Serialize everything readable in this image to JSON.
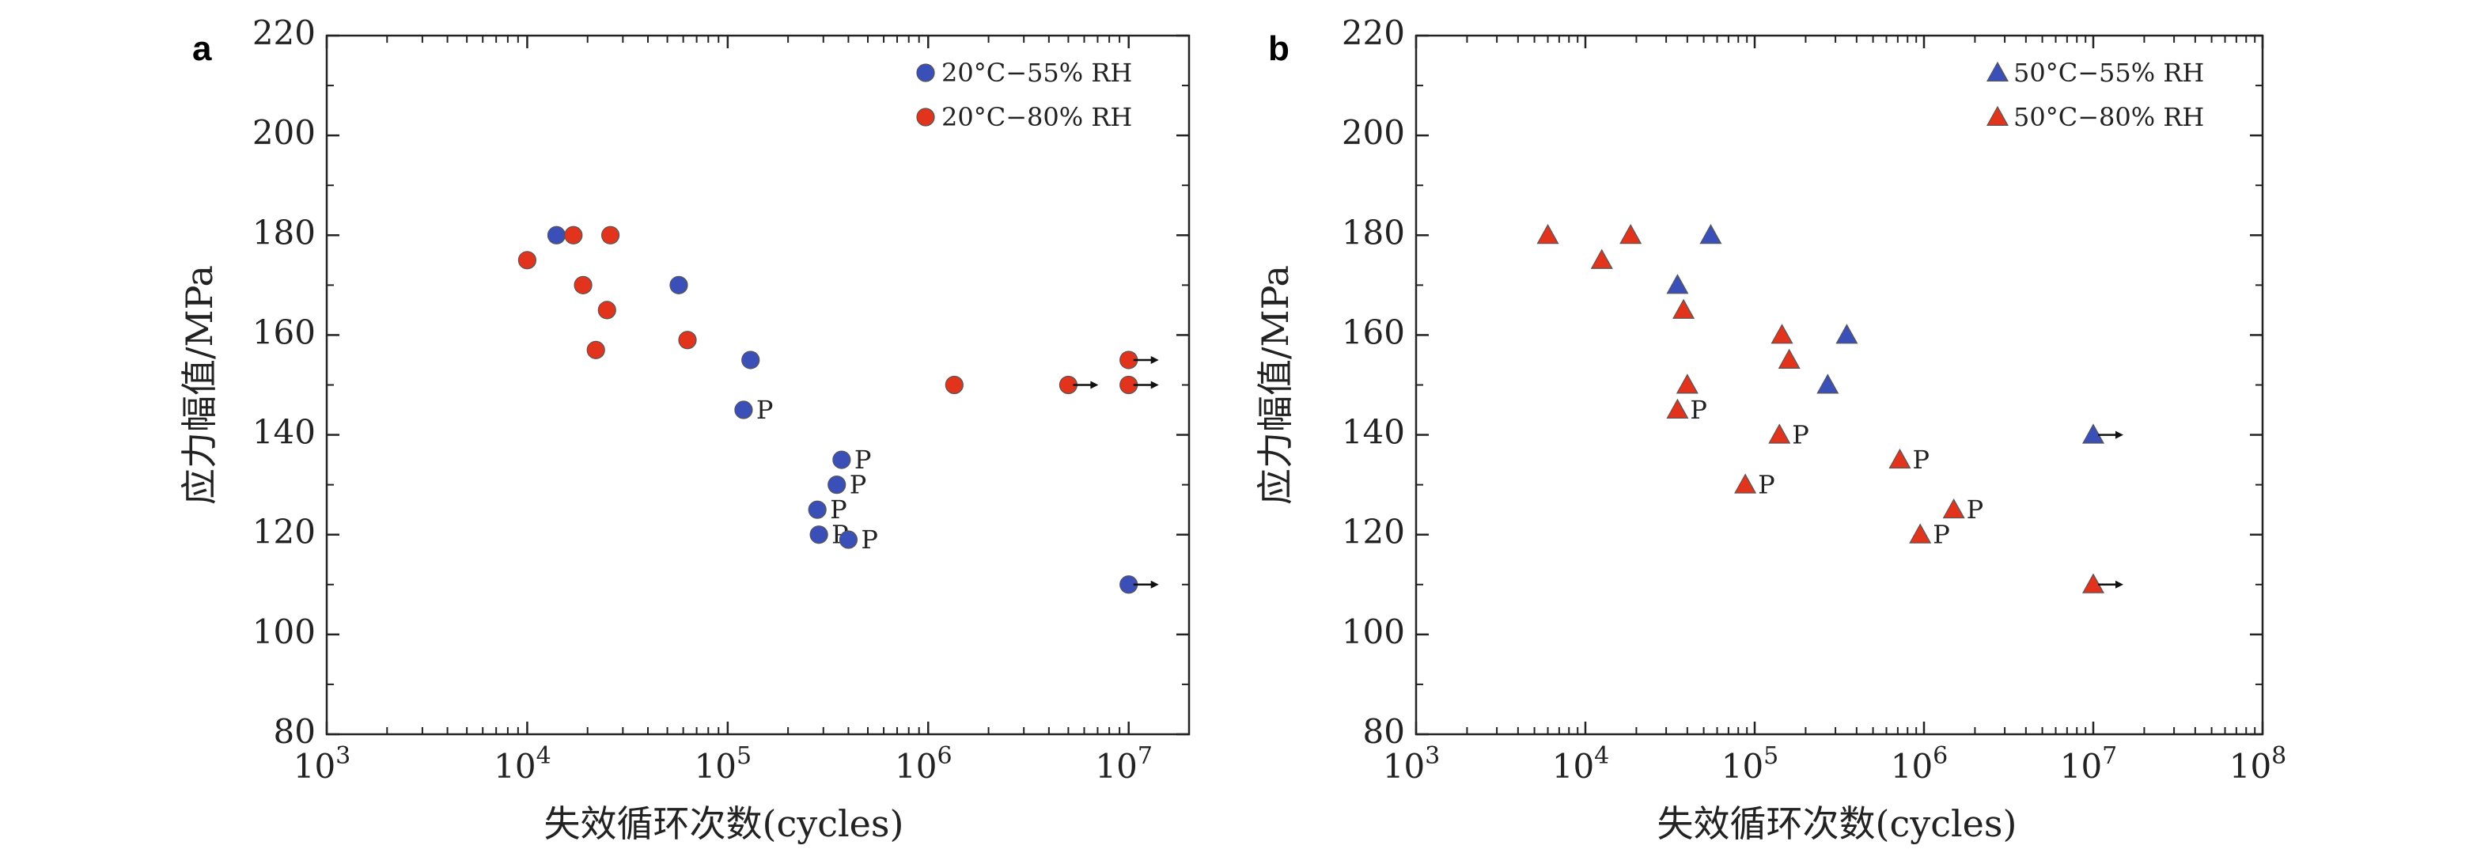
{
  "chart_data": [
    {
      "type": "scatter",
      "panel": "a",
      "xlabel": "失效循环次数(cycles)",
      "ylabel": "应力幅值/MPa",
      "xscale": "log",
      "xlim": [
        1000,
        20000000
      ],
      "ylim": [
        80,
        220
      ],
      "yticks": [
        80,
        100,
        120,
        140,
        160,
        180,
        200,
        220
      ],
      "xticks": [
        {
          "value": 1000,
          "base": "10",
          "exp": "3"
        },
        {
          "value": 10000,
          "base": "10",
          "exp": "4"
        },
        {
          "value": 100000,
          "base": "10",
          "exp": "5"
        },
        {
          "value": 1000000,
          "base": "10",
          "exp": "6"
        },
        {
          "value": 10000000,
          "base": "10",
          "exp": "7"
        }
      ],
      "grid": false,
      "legend_position": "top-right",
      "marker": "circle",
      "series": [
        {
          "name": "20°C−55% RH",
          "color": "#3b4fb8",
          "points": [
            {
              "x": 14000,
              "y": 180
            },
            {
              "x": 57000,
              "y": 170
            },
            {
              "x": 130000,
              "y": 155
            },
            {
              "x": 120000,
              "y": 145,
              "label": "P"
            },
            {
              "x": 370000,
              "y": 135,
              "label": "P"
            },
            {
              "x": 350000,
              "y": 130,
              "label": "P"
            },
            {
              "x": 280000,
              "y": 125,
              "label": "P"
            },
            {
              "x": 285000,
              "y": 120,
              "label": "P"
            },
            {
              "x": 400000,
              "y": 119,
              "label": "P"
            },
            {
              "x": 10000000,
              "y": 110,
              "runout": true
            }
          ]
        },
        {
          "name": "20°C−80% RH",
          "color": "#e2341d",
          "points": [
            {
              "x": 10000,
              "y": 175
            },
            {
              "x": 17000,
              "y": 180
            },
            {
              "x": 26000,
              "y": 180
            },
            {
              "x": 19000,
              "y": 170
            },
            {
              "x": 25000,
              "y": 165
            },
            {
              "x": 22000,
              "y": 157
            },
            {
              "x": 63000,
              "y": 159
            },
            {
              "x": 1350000,
              "y": 150
            },
            {
              "x": 5000000,
              "y": 150,
              "runout": true
            },
            {
              "x": 10000000,
              "y": 150,
              "runout": true
            },
            {
              "x": 10000000,
              "y": 155,
              "runout": true
            }
          ]
        }
      ]
    },
    {
      "type": "scatter",
      "panel": "b",
      "xlabel": "失效循环次数(cycles)",
      "ylabel": "应力幅值/MPa",
      "xscale": "log",
      "xlim": [
        1000,
        100000000
      ],
      "ylim": [
        80,
        220
      ],
      "yticks": [
        80,
        100,
        120,
        140,
        160,
        180,
        200,
        220
      ],
      "xticks": [
        {
          "value": 1000,
          "base": "10",
          "exp": "3"
        },
        {
          "value": 10000,
          "base": "10",
          "exp": "4"
        },
        {
          "value": 100000,
          "base": "10",
          "exp": "5"
        },
        {
          "value": 1000000,
          "base": "10",
          "exp": "6"
        },
        {
          "value": 10000000,
          "base": "10",
          "exp": "7"
        },
        {
          "value": 100000000,
          "base": "10",
          "exp": "8"
        }
      ],
      "grid": false,
      "legend_position": "top-right",
      "marker": "triangle",
      "series": [
        {
          "name": "50°C−55% RH",
          "color": "#3b4fb8",
          "points": [
            {
              "x": 55000,
              "y": 180
            },
            {
              "x": 35000,
              "y": 170
            },
            {
              "x": 350000,
              "y": 160
            },
            {
              "x": 270000,
              "y": 150
            },
            {
              "x": 10000000,
              "y": 140,
              "runout": true
            }
          ]
        },
        {
          "name": "50°C−80% RH",
          "color": "#e2341d",
          "points": [
            {
              "x": 6000,
              "y": 180
            },
            {
              "x": 18500,
              "y": 180
            },
            {
              "x": 12500,
              "y": 175
            },
            {
              "x": 38000,
              "y": 165
            },
            {
              "x": 145000,
              "y": 160
            },
            {
              "x": 160000,
              "y": 155
            },
            {
              "x": 40000,
              "y": 150
            },
            {
              "x": 35000,
              "y": 145,
              "label": "P"
            },
            {
              "x": 140000,
              "y": 140,
              "label": "P"
            },
            {
              "x": 88000,
              "y": 130,
              "label": "P"
            },
            {
              "x": 720000,
              "y": 135,
              "label": "P"
            },
            {
              "x": 1500000,
              "y": 125,
              "label": "P"
            },
            {
              "x": 950000,
              "y": 120,
              "label": "P"
            },
            {
              "x": 10000000,
              "y": 110,
              "runout": true
            }
          ]
        }
      ]
    }
  ]
}
